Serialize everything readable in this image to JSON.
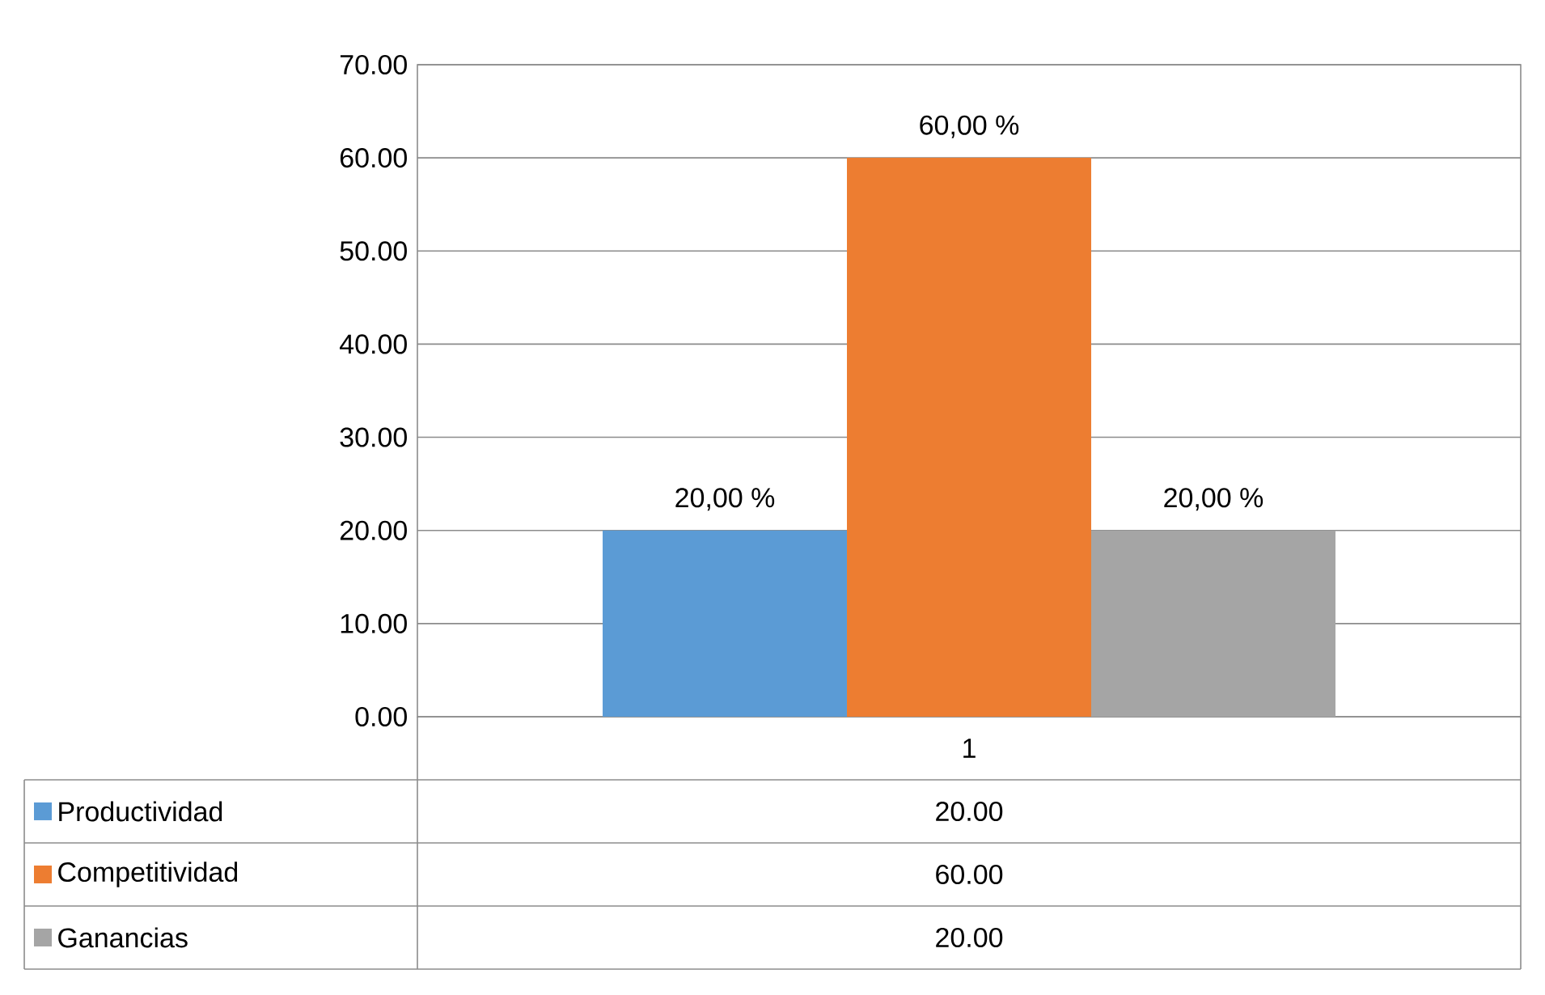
{
  "chart_data": {
    "type": "bar",
    "categories": [
      "1"
    ],
    "series": [
      {
        "name": "Productividad",
        "color": "#5b9bd5",
        "values": [
          20.0
        ],
        "value_labels": [
          "20,00 %"
        ]
      },
      {
        "name": "Competitividad",
        "color": "#ed7d31",
        "values": [
          60.0
        ],
        "value_labels": [
          "60,00 %"
        ]
      },
      {
        "name": "Ganancias",
        "color": "#a5a5a5",
        "values": [
          20.0
        ],
        "value_labels": [
          "20,00 %"
        ]
      }
    ],
    "ylim": [
      0,
      70
    ],
    "yticks": [
      {
        "value": 0,
        "label": "0.00"
      },
      {
        "value": 10,
        "label": "10.00"
      },
      {
        "value": 20,
        "label": "20.00"
      },
      {
        "value": 30,
        "label": "30.00"
      },
      {
        "value": 40,
        "label": "40.00"
      },
      {
        "value": 50,
        "label": "50.00"
      },
      {
        "value": 60,
        "label": "60.00"
      },
      {
        "value": 70,
        "label": "70.00"
      }
    ],
    "annotations": [
      "20.00",
      "60.00",
      "20.00"
    ],
    "grid": "y",
    "legend": "bottom"
  }
}
